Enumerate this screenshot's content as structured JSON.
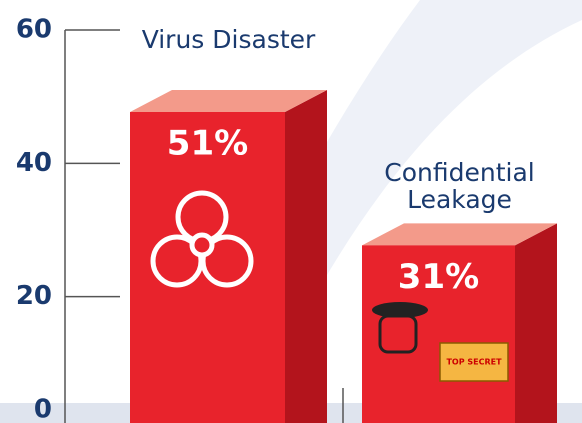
{
  "chart_data": {
    "type": "bar3d",
    "categories": [
      "Virus Disaster",
      "Confidential Leakage"
    ],
    "values": [
      51,
      31
    ],
    "value_labels": [
      "51%",
      "31%"
    ],
    "color": "#e8232c",
    "ylim": [
      0,
      60
    ],
    "yticks": [
      0,
      20,
      40,
      60
    ],
    "annotations": [
      "TOP SECRET"
    ]
  }
}
